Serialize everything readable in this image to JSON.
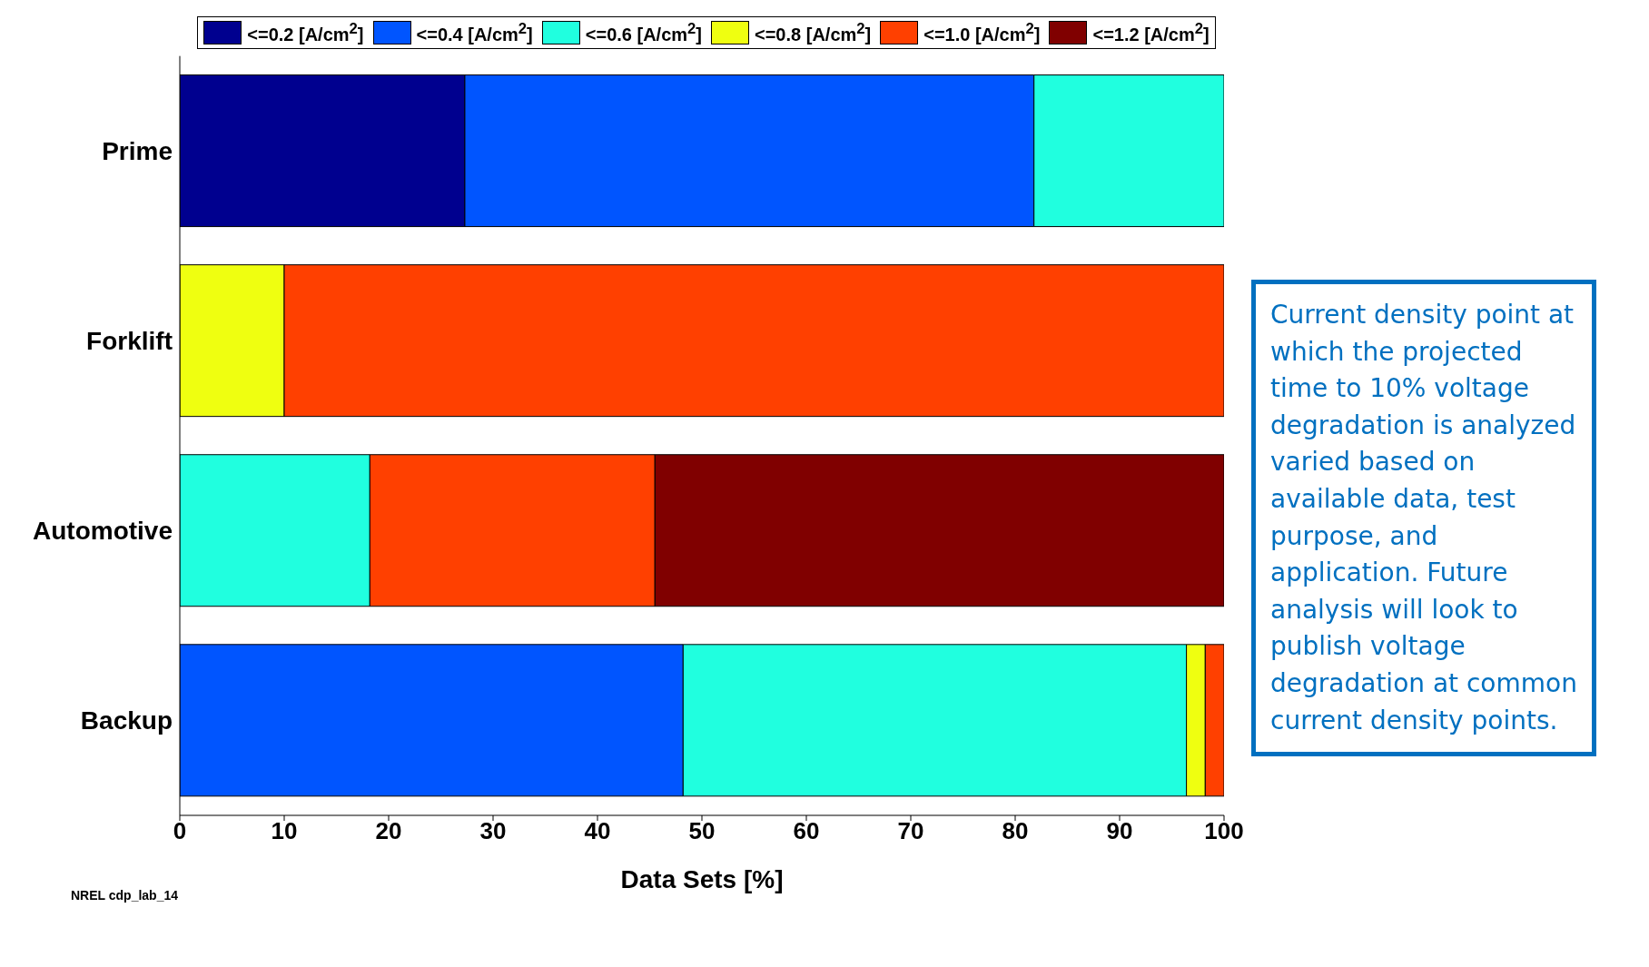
{
  "chart_data": {
    "type": "bar",
    "orientation": "horizontal",
    "stacked": true,
    "xlabel": "Data Sets [%]",
    "categories": [
      "Prime",
      "Forklift",
      "Automotive",
      "Backup"
    ],
    "series": [
      {
        "name": "<=0.2 [A/cm$^{2}$]",
        "color": "#00008f",
        "values": [
          27.3,
          null,
          null,
          null
        ]
      },
      {
        "name": "<=0.4 [A/cm$^{2}$]",
        "color": "#0055ff",
        "values": [
          54.5,
          null,
          null,
          48.2
        ]
      },
      {
        "name": "<=0.6 [A/cm$^{2}$]",
        "color": "#20ffdf",
        "values": [
          18.2,
          null,
          18.2,
          48.2
        ]
      },
      {
        "name": "<=0.8 [A/cm$^{2}$]",
        "color": "#efff10",
        "values": [
          null,
          10,
          null,
          1.8
        ]
      },
      {
        "name": "<=1.0 [A/cm$^{2}$]",
        "color": "#ff4000",
        "values": [
          null,
          90,
          27.3,
          1.8
        ]
      },
      {
        "name": "<=1.2 [A/cm$^{2}$]",
        "color": "#800000",
        "values": [
          null,
          null,
          54.5,
          null
        ]
      }
    ],
    "xlim": [
      0,
      100
    ],
    "xticks": [
      0,
      10,
      20,
      30,
      40,
      50,
      60,
      70,
      80,
      90,
      100
    ],
    "grid": false,
    "legend": "top",
    "annotations": [
      "Current density point at which the projected time to 10% voltage degradation is analyzed varied based on available data, test purpose, and application. Future analysis will look to publish voltage degradation at common current density points.",
      "NREL cdp_lab_14"
    ]
  }
}
